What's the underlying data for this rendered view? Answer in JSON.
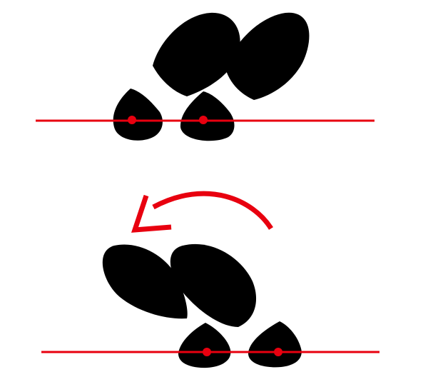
{
  "colors": {
    "background": "#ffffff",
    "footprint": "#000000",
    "guide": "#e8000f"
  },
  "panels": [
    {
      "name": "top-step-panel",
      "footprints": 2,
      "pivot_points": 2
    },
    {
      "name": "bottom-step-panel",
      "footprints": 2,
      "pivot_points": 2,
      "rotation_arrow": "counter-clockwise"
    }
  ],
  "icons": {
    "footprint": "shoe-print-icon",
    "pivot": "pivot-dot-icon",
    "arrow": "rotation-arrow-icon"
  }
}
